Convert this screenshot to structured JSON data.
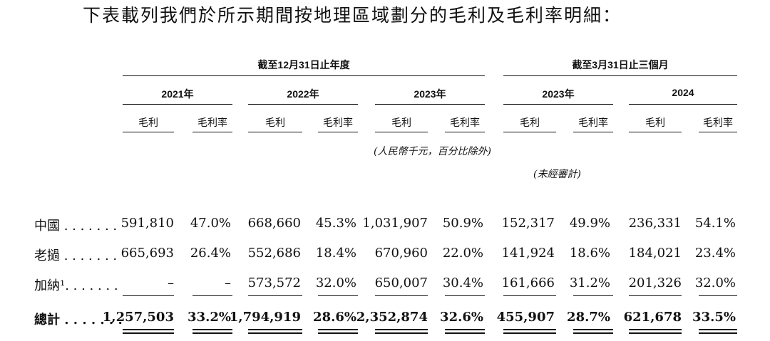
{
  "intro": "下表載列我們於所示期間按地理區域劃分的毛利及毛利率明細：",
  "headers": {
    "group1": "截至12月31日止年度",
    "group2": "截至3月31日止三個月",
    "years": [
      "2021年",
      "2022年",
      "2023年",
      "2023年",
      "2024"
    ],
    "col_profit": "毛利",
    "col_margin": "毛利率",
    "note_rmb": "(人民幣千元，百分比除外)",
    "note_unaudited": "(未經審計)"
  },
  "rows": [
    {
      "label": "中國 . . . . . . .",
      "values": [
        "591,810",
        "47.0%",
        "668,660",
        "45.3%",
        "1,031,907",
        "50.9%",
        "152,317",
        "49.9%",
        "236,331",
        "54.1%"
      ]
    },
    {
      "label": "老撾 . . . . . . .",
      "values": [
        "665,693",
        "26.4%",
        "552,686",
        "18.4%",
        "670,960",
        "22.0%",
        "141,924",
        "18.6%",
        "184,021",
        "23.4%"
      ]
    },
    {
      "label": "加納¹. . . . . . .",
      "values": [
        "–",
        "–",
        "573,572",
        "32.0%",
        "650,007",
        "30.4%",
        "161,666",
        "31.2%",
        "201,326",
        "32.0%"
      ]
    }
  ],
  "total": {
    "label": "總計 . . . . . . .",
    "values": [
      "1,257,503",
      "33.2%",
      "1,794,919",
      "28.6%",
      "2,352,874",
      "32.6%",
      "455,907",
      "28.7%",
      "621,678",
      "33.5%"
    ]
  }
}
